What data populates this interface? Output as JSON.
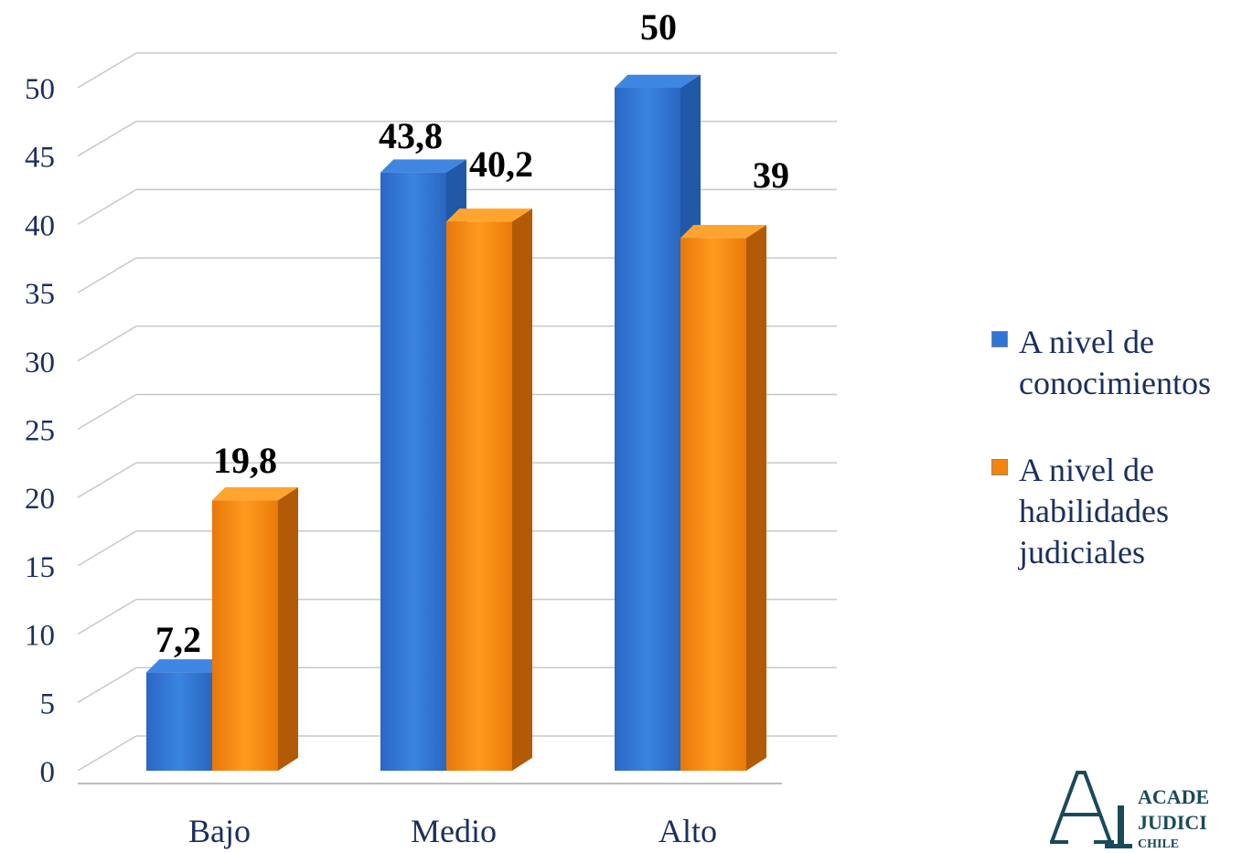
{
  "chart_data": {
    "type": "bar",
    "categories": [
      "Bajo",
      "Medio",
      "Alto"
    ],
    "series": [
      {
        "name": "A nivel de conocimientos",
        "values": [
          7.2,
          43.8,
          50
        ],
        "labels": [
          "7,2",
          "43,8",
          "50"
        ],
        "color": "#2f75d6"
      },
      {
        "name": "A nivel de habilidades judiciales",
        "values": [
          19.8,
          40.2,
          39
        ],
        "labels": [
          "19,8",
          "40,2",
          "39"
        ],
        "color": "#f5840c"
      }
    ],
    "ylim": [
      0,
      50
    ],
    "yticks": [
      0,
      5,
      10,
      15,
      20,
      25,
      30,
      35,
      40,
      45,
      50
    ],
    "grid": true,
    "legend_position": "right",
    "style": "3d-clustered-column"
  },
  "legend": {
    "items": [
      {
        "line1": "A nivel de",
        "line2": "conocimientos",
        "line3": ""
      },
      {
        "line1": "A nivel de",
        "line2": "habilidades",
        "line3": "judiciales"
      }
    ]
  },
  "logo": {
    "mark": "AJ",
    "line1": "ACADE",
    "line2": "JUDICI",
    "line3": "CHILE"
  }
}
